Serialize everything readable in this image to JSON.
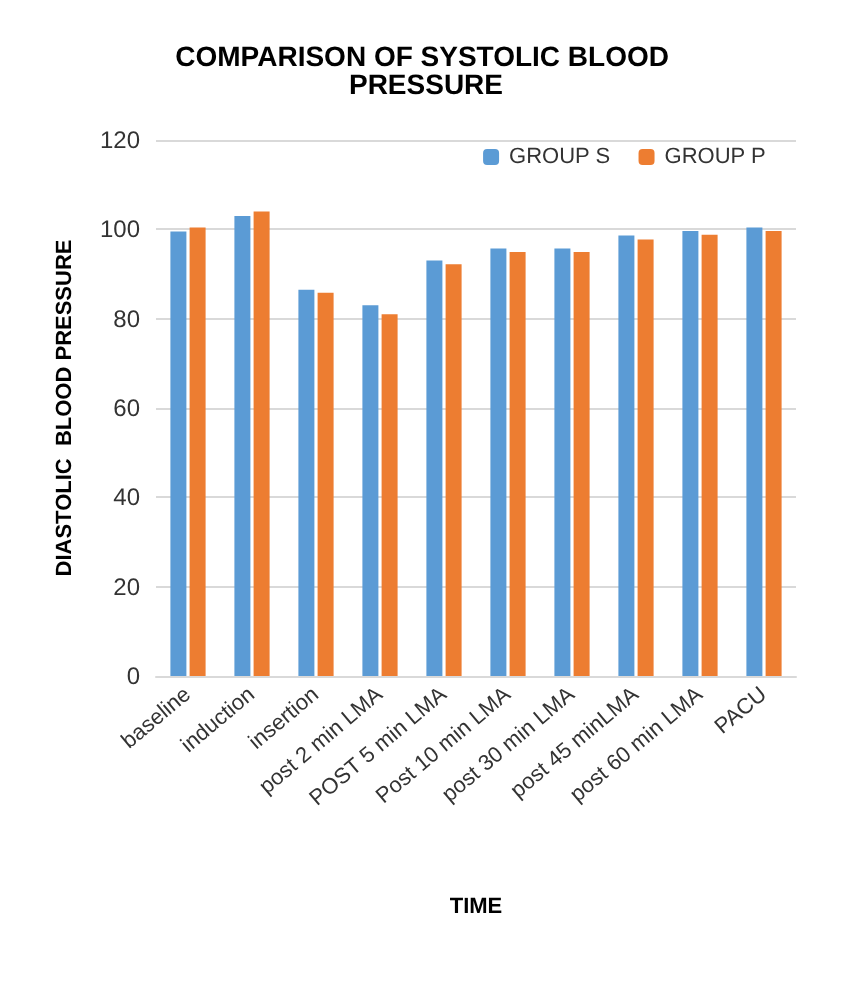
{
  "chart_data": {
    "type": "bar",
    "title": "COMPARISON OF SYSTOLIC BLOOD PRESSURE",
    "xlabel": "TIME",
    "ylabel": "DIASTOLIC  BLOOD PRESSURE",
    "categories": [
      "baseline",
      "induction",
      "insertion",
      "post 2 min LMA",
      "POST 5 min LMA",
      "Post 10 min LMA",
      "post 30 min LMA",
      "post 45 minLMA",
      "post 60 min LMA",
      "PACU"
    ],
    "series": [
      {
        "name": "GROUP S",
        "color": "#5b9bd5",
        "values": [
          99.5,
          103,
          86.5,
          83,
          93,
          95.7,
          95.7,
          98.6,
          99.6,
          100.4
        ]
      },
      {
        "name": "GROUP P",
        "color": "#ed7d31",
        "values": [
          100.4,
          104,
          85.8,
          81,
          92.2,
          94.9,
          94.9,
          97.7,
          98.8,
          99.6
        ]
      }
    ],
    "ylim": [
      0,
      120
    ],
    "yticks": [
      0,
      20,
      40,
      60,
      80,
      100,
      120
    ],
    "grid": "y",
    "legend": "top right"
  }
}
